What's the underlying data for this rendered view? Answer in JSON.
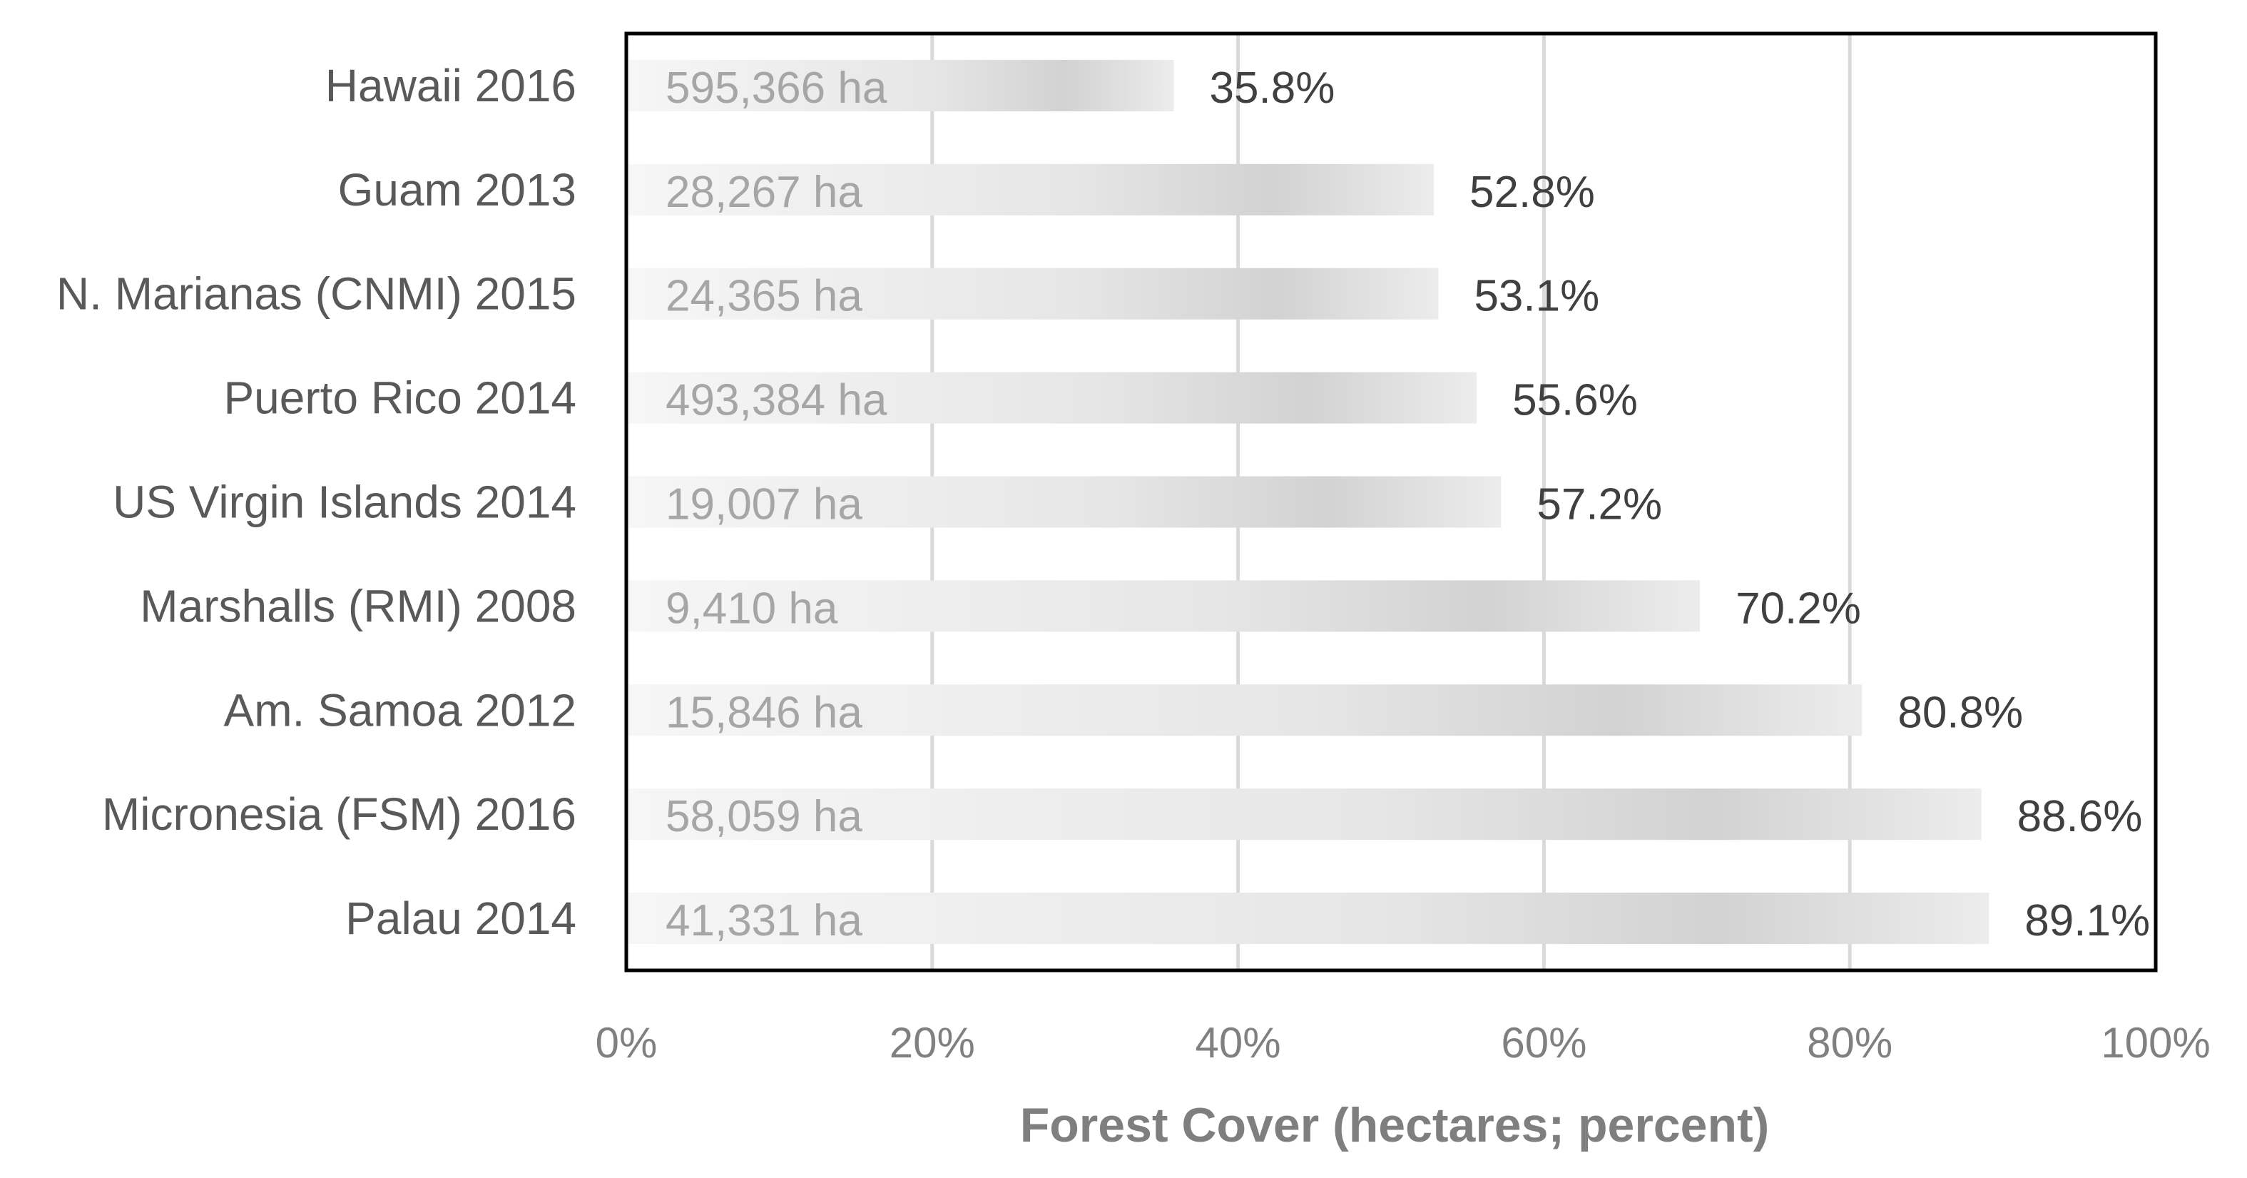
{
  "chart_data": {
    "type": "bar",
    "orientation": "horizontal",
    "title": "",
    "xlabel": "Forest Cover (hectares; percent)",
    "ylabel": "",
    "xlim": [
      0,
      100
    ],
    "x_ticks": [
      "0%",
      "20%",
      "40%",
      "60%",
      "80%",
      "100%"
    ],
    "grid": "vertical",
    "categories": [
      "Hawaii 2016",
      "Guam 2013",
      "N. Marianas (CNMI) 2015",
      "Puerto Rico 2014",
      "US Virgin Islands 2014",
      "Marshalls (RMI) 2008",
      "Am. Samoa 2012",
      "Micronesia (FSM) 2016",
      "Palau 2014"
    ],
    "values": [
      35.8,
      52.8,
      53.1,
      55.6,
      57.2,
      70.2,
      80.8,
      88.6,
      89.1
    ],
    "percent_labels": [
      "35.8%",
      "52.8%",
      "53.1%",
      "55.6%",
      "57.2%",
      "70.2%",
      "80.8%",
      "88.6%",
      "89.1%"
    ],
    "hectare_labels": [
      "595,366 ha",
      "28,267 ha",
      "24,365 ha",
      "493,384 ha",
      "19,007 ha",
      "9,410 ha",
      "15,846 ha",
      "58,059 ha",
      "41,331 ha"
    ],
    "colors": {
      "bar_light": "#f4f4f4",
      "bar_dark": "#d4d4d4",
      "grid": "#d9d9d9",
      "frame": "#000000",
      "category_text": "#595959",
      "hectare_text": "#a6a6a6",
      "percent_text": "#404040",
      "tick_text": "#808080",
      "axis_title_text": "#7f7f7f"
    }
  }
}
